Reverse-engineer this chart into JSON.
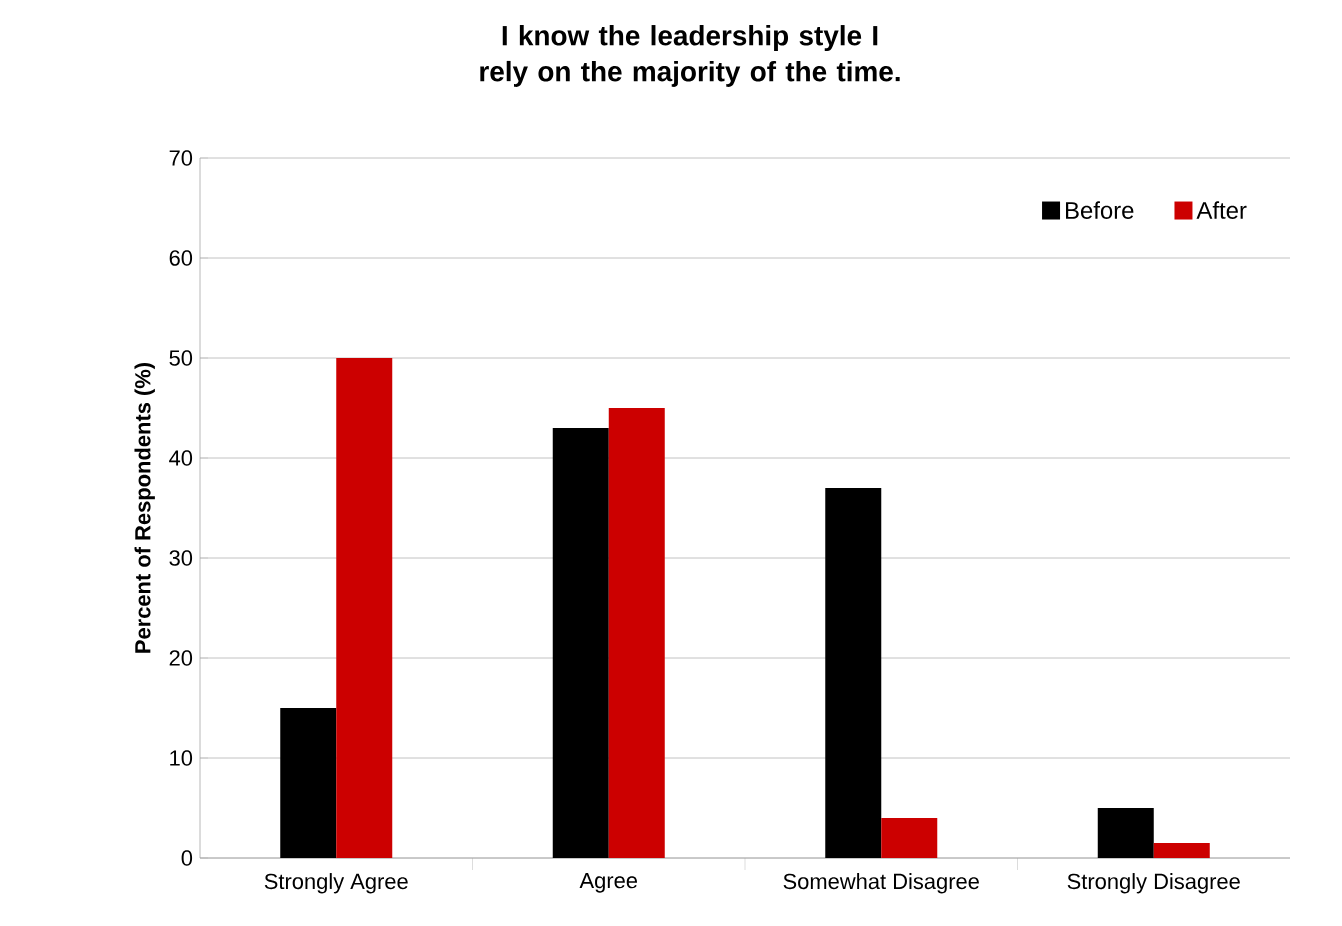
{
  "chart_data": {
    "type": "bar",
    "title": "I know the leadership style I rely on the majority of the time.",
    "ylabel": "Percent of Respondents (%)",
    "categories": [
      "Strongly Agree",
      "Agree",
      "Somewhat Disagree",
      "Strongly Disagree"
    ],
    "series": [
      {
        "name": "Before",
        "color": "#000000",
        "values": [
          15,
          43,
          37,
          5
        ]
      },
      {
        "name": "After",
        "color": "#cc0000",
        "values": [
          50,
          45,
          4,
          1.5
        ]
      }
    ],
    "ylim": [
      0,
      70
    ],
    "yticks": [
      0,
      10,
      20,
      30,
      40,
      50,
      60,
      70
    ],
    "grid": "y",
    "legend": "top right"
  }
}
